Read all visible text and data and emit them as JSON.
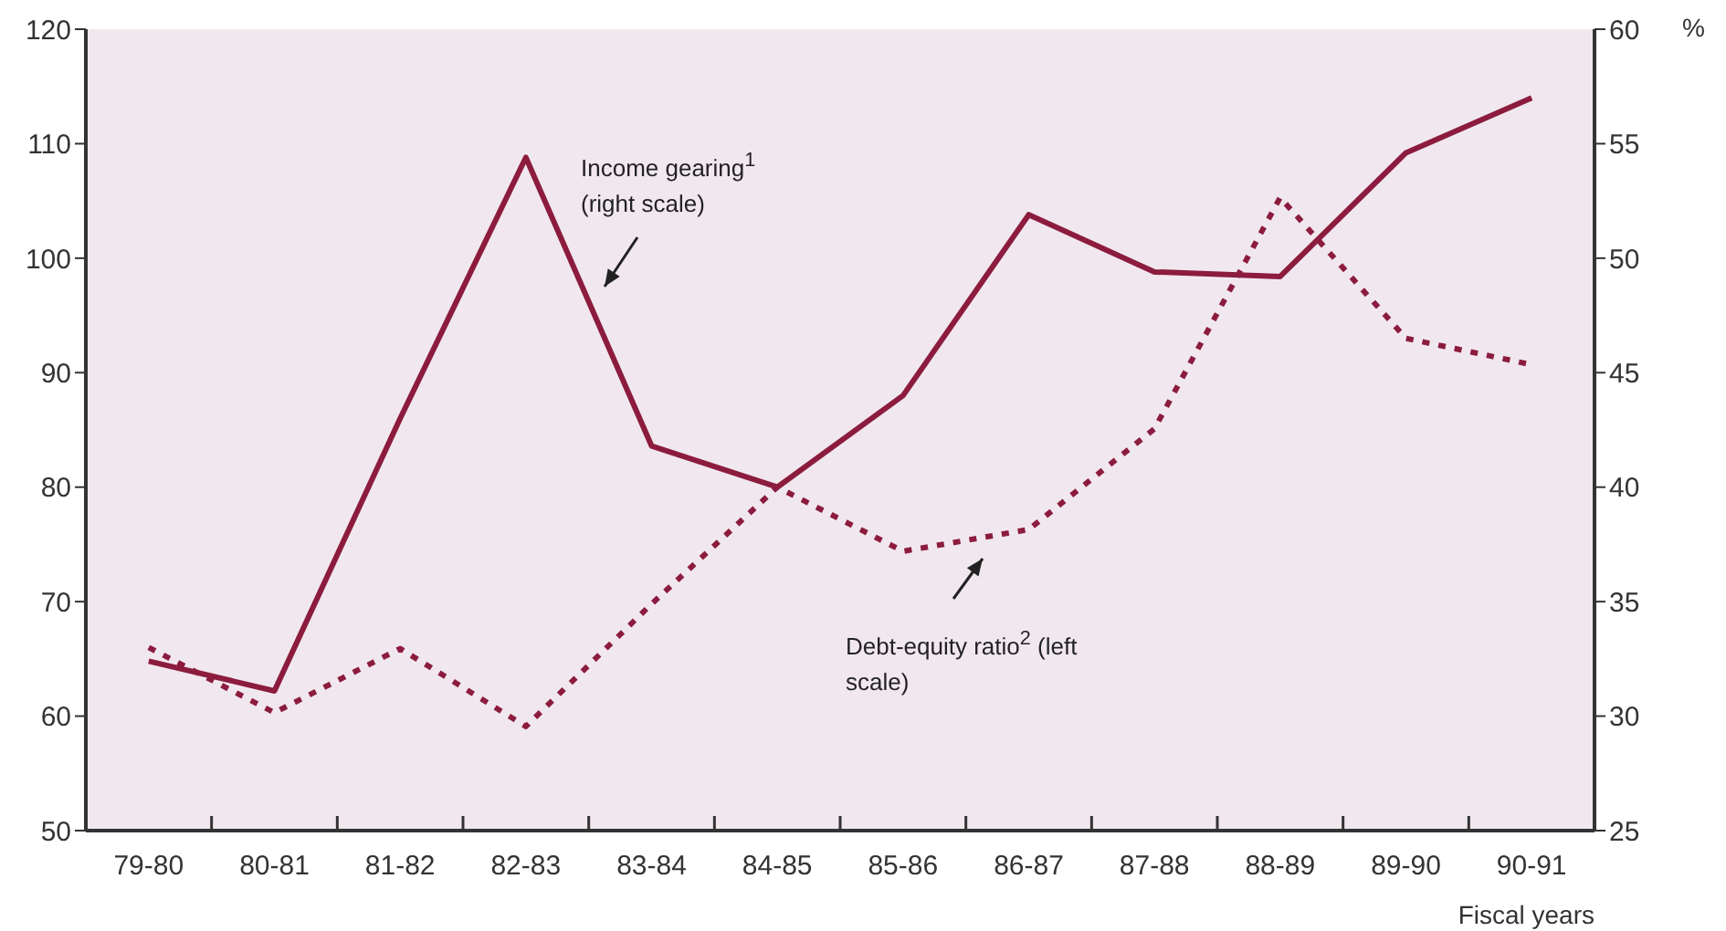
{
  "chart_data": {
    "type": "line",
    "xlabel": "Fiscal years",
    "y2label": "%",
    "categories": [
      "79-80",
      "80-81",
      "81-82",
      "82-83",
      "83-84",
      "84-85",
      "85-86",
      "86-87",
      "87-88",
      "88-89",
      "89-90",
      "90-91"
    ],
    "ylim": [
      50,
      120
    ],
    "yticks": [
      50,
      60,
      70,
      80,
      90,
      100,
      110,
      120
    ],
    "y2lim": [
      25,
      60
    ],
    "y2ticks": [
      25,
      30,
      35,
      40,
      45,
      50,
      55,
      60
    ],
    "marker": "none",
    "legend": false,
    "series": [
      {
        "name": "Income gearing$^{1}$ (right scale)",
        "color": "#8c1c3e",
        "axis": "y2",
        "line_style": "solid",
        "values": [
          32.4,
          31.1,
          43.0,
          54.4,
          41.8,
          40.0,
          44.0,
          51.9,
          49.4,
          49.2,
          54.6,
          57.0
        ]
      },
      {
        "name": "Debt-equity ratio$^{2}$ (left scale)",
        "color": "#8c1c3e",
        "axis": "y",
        "line_style": "dashed",
        "values": [
          66.0,
          60.3,
          65.9,
          59.1,
          69.8,
          80.0,
          74.4,
          76.3,
          85.1,
          105.3,
          93.0,
          90.7
        ]
      }
    ]
  }
}
